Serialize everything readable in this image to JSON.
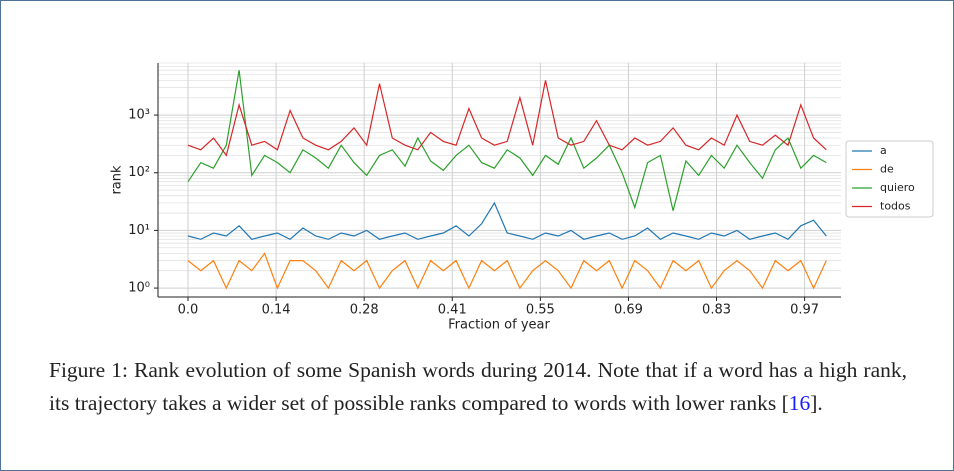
{
  "chart_data": {
    "type": "line",
    "xlabel": "Fraction of year",
    "ylabel": "rank",
    "log_y": true,
    "grid": true,
    "legend": "right",
    "xlim": [
      -0.047,
      1.023
    ],
    "ylim": [
      0.7,
      8000
    ],
    "xticks": [
      {
        "value": 0,
        "label": "0.0"
      },
      {
        "value": 0.138,
        "label": "0.14"
      },
      {
        "value": 0.276,
        "label": "0.28"
      },
      {
        "value": 0.414,
        "label": "0.41"
      },
      {
        "value": 0.552,
        "label": "0.55"
      },
      {
        "value": 0.69,
        "label": "0.69"
      },
      {
        "value": 0.828,
        "label": "0.83"
      },
      {
        "value": 0.966,
        "label": "0.97"
      }
    ],
    "yticks": [
      {
        "value": 1,
        "label": "10⁰"
      },
      {
        "value": 10,
        "label": "10¹"
      },
      {
        "value": 100,
        "label": "10²"
      },
      {
        "value": 1000,
        "label": "10³"
      }
    ],
    "yminorticks": [
      2,
      3,
      4,
      5,
      6,
      7,
      8,
      9,
      20,
      30,
      40,
      50,
      60,
      70,
      80,
      90,
      200,
      300,
      400,
      500,
      600,
      700,
      800,
      900,
      2000,
      3000,
      4000,
      5000,
      6000,
      7000,
      8000
    ],
    "x": [
      0,
      0.02,
      0.04,
      0.06,
      0.08,
      0.1,
      0.12,
      0.14,
      0.16,
      0.18,
      0.2,
      0.22,
      0.24,
      0.26,
      0.28,
      0.3,
      0.32,
      0.34,
      0.36,
      0.38,
      0.4,
      0.42,
      0.44,
      0.46,
      0.48,
      0.5,
      0.52,
      0.54,
      0.56,
      0.58,
      0.6,
      0.62,
      0.64,
      0.66,
      0.68,
      0.7,
      0.72,
      0.74,
      0.76,
      0.78,
      0.8,
      0.82,
      0.84,
      0.86,
      0.88,
      0.9,
      0.92,
      0.94,
      0.96,
      0.98,
      1.0
    ],
    "series": [
      {
        "name": "a",
        "color": "#1f77b4",
        "values": [
          8,
          7,
          9,
          8,
          12,
          7,
          8,
          9,
          7,
          11,
          8,
          7,
          9,
          8,
          10,
          7,
          8,
          9,
          7,
          8,
          9,
          12,
          8,
          13,
          30,
          9,
          8,
          7,
          9,
          8,
          10,
          7,
          8,
          9,
          7,
          8,
          11,
          7,
          9,
          8,
          7,
          9,
          8,
          10,
          7,
          8,
          9,
          7,
          12,
          15,
          8
        ]
      },
      {
        "name": "de",
        "color": "#ff7f0e",
        "values": [
          3,
          2,
          3,
          1,
          3,
          2,
          4,
          1,
          3,
          3,
          2,
          1,
          3,
          2,
          3,
          1,
          2,
          3,
          1,
          3,
          2,
          3,
          1,
          3,
          2,
          3,
          1,
          2,
          3,
          2,
          1,
          3,
          2,
          3,
          1,
          3,
          2,
          1,
          3,
          2,
          3,
          1,
          2,
          3,
          2,
          1,
          3,
          2,
          3,
          1,
          3
        ]
      },
      {
        "name": "quiero",
        "color": "#2ca02c",
        "values": [
          70,
          150,
          120,
          300,
          6000,
          90,
          200,
          150,
          100,
          250,
          180,
          120,
          300,
          150,
          90,
          200,
          250,
          130,
          400,
          160,
          110,
          200,
          300,
          150,
          120,
          250,
          180,
          90,
          200,
          140,
          400,
          120,
          180,
          300,
          100,
          25,
          150,
          200,
          22,
          160,
          90,
          200,
          120,
          300,
          150,
          80,
          250,
          400,
          120,
          200,
          150
        ]
      },
      {
        "name": "todos",
        "color": "#d62728",
        "values": [
          300,
          250,
          400,
          200,
          1500,
          300,
          350,
          250,
          1200,
          400,
          300,
          250,
          350,
          600,
          300,
          3500,
          400,
          300,
          250,
          500,
          350,
          300,
          1300,
          400,
          300,
          350,
          2000,
          300,
          4000,
          400,
          300,
          350,
          800,
          300,
          250,
          400,
          300,
          350,
          600,
          300,
          250,
          400,
          300,
          1000,
          350,
          300,
          450,
          300,
          1500,
          400,
          250
        ]
      }
    ]
  },
  "caption": {
    "label": "Figure 1:",
    "text": "Rank evolution of some Spanish words during 2014. Note that if a word has a high rank, its trajectory takes a wider set of possible ranks compared to words with lower ranks [",
    "citation": "16",
    "text_after": "]."
  }
}
